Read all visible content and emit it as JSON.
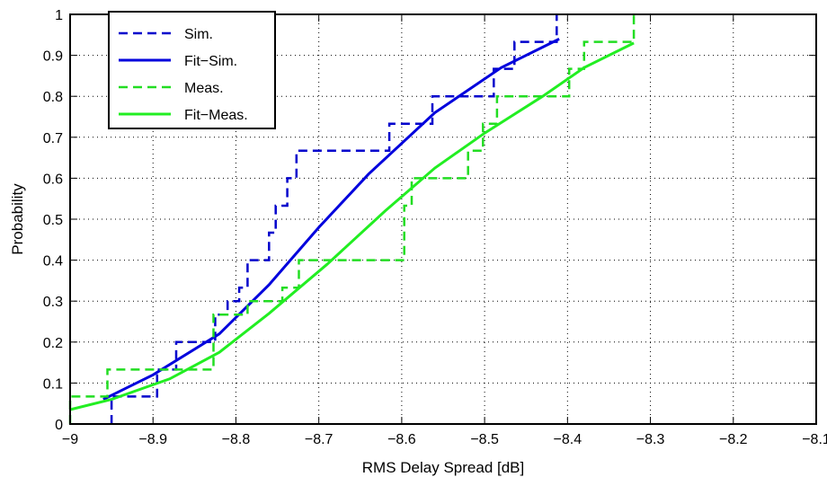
{
  "chart_data": {
    "type": "line",
    "title": "",
    "xlabel": "RMS Delay Spread [dB]",
    "ylabel": "Probability",
    "xlim": [
      -9,
      -8.1
    ],
    "ylim": [
      0,
      1
    ],
    "xticks": [
      -9,
      -8.9,
      -8.8,
      -8.7,
      -8.6,
      -8.5,
      -8.4,
      -8.3,
      -8.2,
      -8.1
    ],
    "yticks": [
      0,
      0.1,
      0.2,
      0.3,
      0.4,
      0.5,
      0.6,
      0.7,
      0.8,
      0.9,
      1
    ],
    "xtick_labels": [
      "-9",
      "-8.9",
      "-8.8",
      "-8.7",
      "-8.6",
      "-8.5",
      "-8.4",
      "-8.3",
      "-8.2",
      "-8.1"
    ],
    "ytick_labels": [
      "0",
      "0.1",
      "0.2",
      "0.3",
      "0.4",
      "0.5",
      "0.6",
      "0.7",
      "0.8",
      "0.9",
      "1"
    ],
    "grid": true,
    "legend_position": "top-left",
    "series": [
      {
        "name": "Sim.",
        "color": "#0000cc",
        "style": "dashed",
        "kind": "step",
        "x": [
          -8.95,
          -8.95,
          -8.895,
          -8.895,
          -8.872,
          -8.872,
          -8.825,
          -8.825,
          -8.81,
          -8.81,
          -8.796,
          -8.796,
          -8.786,
          -8.786,
          -8.76,
          -8.76,
          -8.752,
          -8.752,
          -8.738,
          -8.738,
          -8.727,
          -8.727,
          -8.615,
          -8.615,
          -8.563,
          -8.563,
          -8.489,
          -8.489,
          -8.464,
          -8.464,
          -8.455,
          -8.455,
          -8.413,
          -8.413
        ],
        "y": [
          0,
          0.067,
          0.067,
          0.133,
          0.133,
          0.2,
          0.2,
          0.267,
          0.267,
          0.3,
          0.3,
          0.333,
          0.333,
          0.4,
          0.4,
          0.467,
          0.467,
          0.533,
          0.533,
          0.6,
          0.6,
          0.667,
          0.667,
          0.733,
          0.733,
          0.8,
          0.8,
          0.867,
          0.867,
          0.933,
          0.933,
          0.933,
          0.933,
          1
        ]
      },
      {
        "name": "Fit−Sim.",
        "color": "#0000dd",
        "style": "solid",
        "kind": "line",
        "x": [
          -8.96,
          -8.9,
          -8.82,
          -8.76,
          -8.7,
          -8.64,
          -8.56,
          -8.48,
          -8.41
        ],
        "y": [
          0.06,
          0.12,
          0.22,
          0.34,
          0.48,
          0.61,
          0.76,
          0.87,
          0.94
        ]
      },
      {
        "name": "Meas.",
        "color": "#22dd22",
        "style": "dashed",
        "kind": "step",
        "x": [
          -9,
          -9,
          -8.955,
          -8.955,
          -8.827,
          -8.827,
          -8.786,
          -8.786,
          -8.744,
          -8.744,
          -8.724,
          -8.724,
          -8.7,
          -8.7,
          -8.597,
          -8.597,
          -8.588,
          -8.588,
          -8.55,
          -8.55,
          -8.52,
          -8.52,
          -8.502,
          -8.502,
          -8.485,
          -8.485,
          -8.398,
          -8.398,
          -8.38,
          -8.38,
          -8.32,
          -8.32
        ],
        "y": [
          0,
          0.067,
          0.067,
          0.133,
          0.133,
          0.267,
          0.267,
          0.3,
          0.3,
          0.333,
          0.333,
          0.4,
          0.4,
          0.4,
          0.4,
          0.533,
          0.533,
          0.6,
          0.6,
          0.6,
          0.6,
          0.667,
          0.667,
          0.733,
          0.733,
          0.8,
          0.8,
          0.867,
          0.867,
          0.933,
          0.933,
          1
        ]
      },
      {
        "name": "Fit−Meas.",
        "color": "#22ee22",
        "style": "solid",
        "kind": "line",
        "x": [
          -9,
          -8.95,
          -8.88,
          -8.82,
          -8.76,
          -8.69,
          -8.62,
          -8.56,
          -8.5,
          -8.43,
          -8.38,
          -8.32
        ],
        "y": [
          0.035,
          0.06,
          0.11,
          0.175,
          0.27,
          0.39,
          0.52,
          0.625,
          0.71,
          0.8,
          0.87,
          0.93
        ]
      }
    ]
  }
}
